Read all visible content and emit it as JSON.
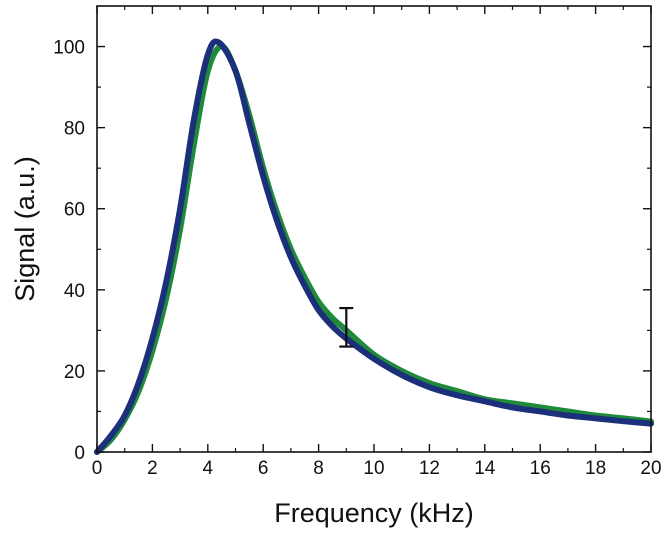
{
  "chart_data": {
    "type": "line",
    "title": "",
    "xlabel": "Frequency (kHz)",
    "ylabel": "Signal (a.u.)",
    "xlim": [
      0,
      20
    ],
    "ylim": [
      0,
      110
    ],
    "xticks": [
      0,
      2,
      4,
      6,
      8,
      10,
      12,
      14,
      16,
      18,
      20
    ],
    "yticks": [
      0,
      20,
      40,
      60,
      80,
      100
    ],
    "grid": false,
    "legend": "none",
    "series": [
      {
        "color": "#1f8a3a",
        "x": [
          0,
          0.5,
          1,
          1.5,
          2,
          2.5,
          3,
          3.5,
          4,
          4.5,
          5,
          5.5,
          6,
          6.5,
          7,
          7.5,
          8,
          8.5,
          9,
          10,
          11,
          12,
          13,
          14,
          15,
          16,
          17,
          18,
          19,
          20
        ],
        "y": [
          0,
          3,
          8,
          15,
          25,
          38,
          55,
          76,
          94,
          100,
          94,
          83,
          70,
          59,
          50,
          43,
          37,
          33,
          30,
          24,
          20,
          17,
          15,
          13,
          12,
          11,
          10,
          9,
          8.3,
          7.5
        ]
      },
      {
        "color": "#1c2f7a",
        "x": [
          0,
          0.5,
          1,
          1.5,
          2,
          2.5,
          3,
          3.5,
          4,
          4.4,
          5,
          5.5,
          6,
          6.5,
          7,
          7.5,
          8,
          8.5,
          9,
          10,
          11,
          12,
          13,
          14,
          15,
          16,
          17,
          18,
          19,
          20
        ],
        "y": [
          0,
          4,
          9,
          17,
          28,
          42,
          60,
          82,
          98,
          101,
          94,
          81,
          68,
          57,
          48,
          41,
          35,
          31,
          28,
          23,
          19,
          16,
          14,
          12.5,
          11,
          10,
          9,
          8.3,
          7.6,
          7
        ]
      }
    ],
    "error_bar": {
      "x": 9,
      "y": 30.5,
      "low": 26,
      "high": 35.5,
      "color": "#111111"
    }
  }
}
